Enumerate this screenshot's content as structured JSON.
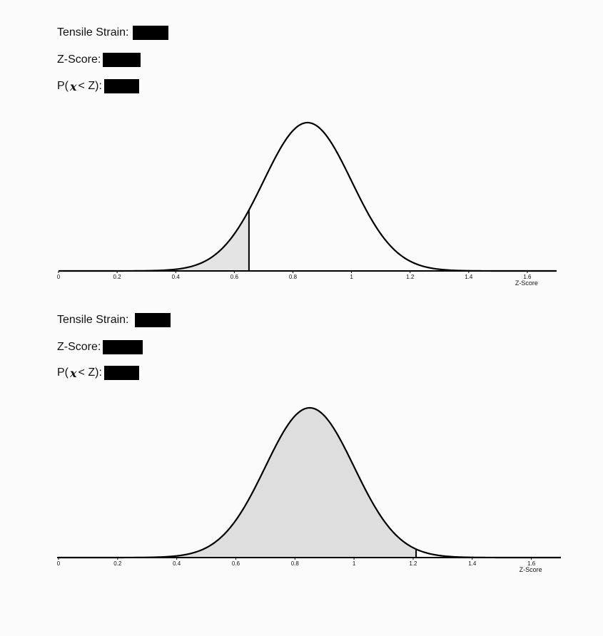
{
  "problems": [
    {
      "fields": [
        {
          "label": "Tensile Strain:",
          "value": ""
        },
        {
          "label": "Z-Score:",
          "value": ""
        },
        {
          "label": "P(",
          "symbol": "x",
          "suffix": "< Z):",
          "value": ""
        }
      ]
    },
    {
      "fields": [
        {
          "label": "Tensile Strain:",
          "value": ""
        },
        {
          "label": "Z-Score:",
          "value": ""
        },
        {
          "label": "P(",
          "symbol": "x",
          "suffix": "< Z):",
          "value": ""
        }
      ]
    }
  ],
  "chart_data": [
    {
      "type": "area",
      "curve": "normal",
      "mean": 0.85,
      "sd": 0.15,
      "shaded": {
        "from": 0,
        "to": 0.65
      },
      "cutoff": 0.65,
      "xlim": [
        0,
        1.7
      ],
      "ticks": [
        "0",
        "0.2",
        "0.4",
        "0.6",
        "0.8",
        "1",
        "1.2",
        "1.4",
        "1.6"
      ],
      "tick_values": [
        0,
        0.2,
        0.4,
        0.6,
        0.8,
        1,
        1.2,
        1.4,
        1.6
      ],
      "xlabel": "Z-Score",
      "fill_color": "#e4e4e4",
      "line_color": "#000000"
    },
    {
      "type": "area",
      "curve": "normal",
      "mean": 0.85,
      "sd": 0.15,
      "shaded": {
        "from": 0,
        "to": 1.21
      },
      "cutoff": 1.21,
      "xlim": [
        0,
        1.7
      ],
      "ticks": [
        "0",
        "0.2",
        "0.4",
        "0.6",
        "0.8",
        "1",
        "1.2",
        "1.4",
        "1.6"
      ],
      "tick_values": [
        0,
        0.2,
        0.4,
        0.6,
        0.8,
        1,
        1.2,
        1.4,
        1.6
      ],
      "xlabel": "Z-Score",
      "fill_color": "#dedede",
      "line_color": "#000000"
    }
  ]
}
